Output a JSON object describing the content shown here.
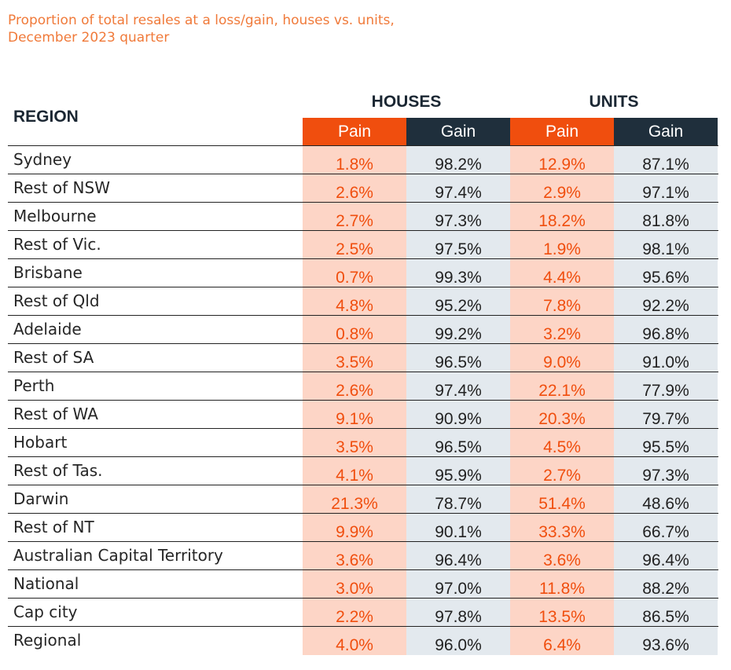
{
  "title_lines": [
    "Proportion of total resales at a loss/gain, houses vs. units,",
    "December 2023 quarter"
  ],
  "header": {
    "region": "REGION",
    "houses": "HOUSES",
    "units": "UNITS",
    "pain": "Pain",
    "gain": "Gain"
  },
  "colors": {
    "title": "#f07a3a",
    "pain_header": "#f04e0e",
    "gain_header": "#1f2f3c",
    "pain_cell": "#fdd5c6",
    "gain_cell": "#e3e9ee"
  },
  "chart_data": {
    "type": "table",
    "columns": [
      "REGION",
      "HOUSES Pain",
      "HOUSES Gain",
      "UNITS Pain",
      "UNITS Gain"
    ],
    "rows": [
      {
        "region": "Sydney",
        "houses_pain": "1.8%",
        "houses_gain": "98.2%",
        "units_pain": "12.9%",
        "units_gain": "87.1%"
      },
      {
        "region": "Rest of NSW",
        "houses_pain": "2.6%",
        "houses_gain": "97.4%",
        "units_pain": "2.9%",
        "units_gain": "97.1%"
      },
      {
        "region": "Melbourne",
        "houses_pain": "2.7%",
        "houses_gain": "97.3%",
        "units_pain": "18.2%",
        "units_gain": "81.8%"
      },
      {
        "region": "Rest of Vic.",
        "houses_pain": "2.5%",
        "houses_gain": "97.5%",
        "units_pain": "1.9%",
        "units_gain": "98.1%"
      },
      {
        "region": "Brisbane",
        "houses_pain": "0.7%",
        "houses_gain": "99.3%",
        "units_pain": "4.4%",
        "units_gain": "95.6%"
      },
      {
        "region": "Rest of Qld",
        "houses_pain": "4.8%",
        "houses_gain": "95.2%",
        "units_pain": "7.8%",
        "units_gain": "92.2%"
      },
      {
        "region": "Adelaide",
        "houses_pain": "0.8%",
        "houses_gain": "99.2%",
        "units_pain": "3.2%",
        "units_gain": "96.8%"
      },
      {
        "region": "Rest of SA",
        "houses_pain": "3.5%",
        "houses_gain": "96.5%",
        "units_pain": "9.0%",
        "units_gain": "91.0%"
      },
      {
        "region": "Perth",
        "houses_pain": "2.6%",
        "houses_gain": "97.4%",
        "units_pain": "22.1%",
        "units_gain": "77.9%"
      },
      {
        "region": "Rest of WA",
        "houses_pain": "9.1%",
        "houses_gain": "90.9%",
        "units_pain": "20.3%",
        "units_gain": "79.7%"
      },
      {
        "region": "Hobart",
        "houses_pain": "3.5%",
        "houses_gain": "96.5%",
        "units_pain": "4.5%",
        "units_gain": "95.5%"
      },
      {
        "region": "Rest of Tas.",
        "houses_pain": "4.1%",
        "houses_gain": "95.9%",
        "units_pain": "2.7%",
        "units_gain": "97.3%"
      },
      {
        "region": "Darwin",
        "houses_pain": "21.3%",
        "houses_gain": "78.7%",
        "units_pain": "51.4%",
        "units_gain": "48.6%"
      },
      {
        "region": "Rest of NT",
        "houses_pain": "9.9%",
        "houses_gain": "90.1%",
        "units_pain": "33.3%",
        "units_gain": "66.7%"
      },
      {
        "region": "Australian Capital Territory",
        "houses_pain": "3.6%",
        "houses_gain": "96.4%",
        "units_pain": "3.6%",
        "units_gain": "96.4%"
      },
      {
        "region": "National",
        "houses_pain": "3.0%",
        "houses_gain": "97.0%",
        "units_pain": "11.8%",
        "units_gain": "88.2%"
      },
      {
        "region": "Cap city",
        "houses_pain": "2.2%",
        "houses_gain": "97.8%",
        "units_pain": "13.5%",
        "units_gain": "86.5%"
      },
      {
        "region": "Regional",
        "houses_pain": "4.0%",
        "houses_gain": "96.0%",
        "units_pain": "6.4%",
        "units_gain": "93.6%"
      }
    ]
  }
}
